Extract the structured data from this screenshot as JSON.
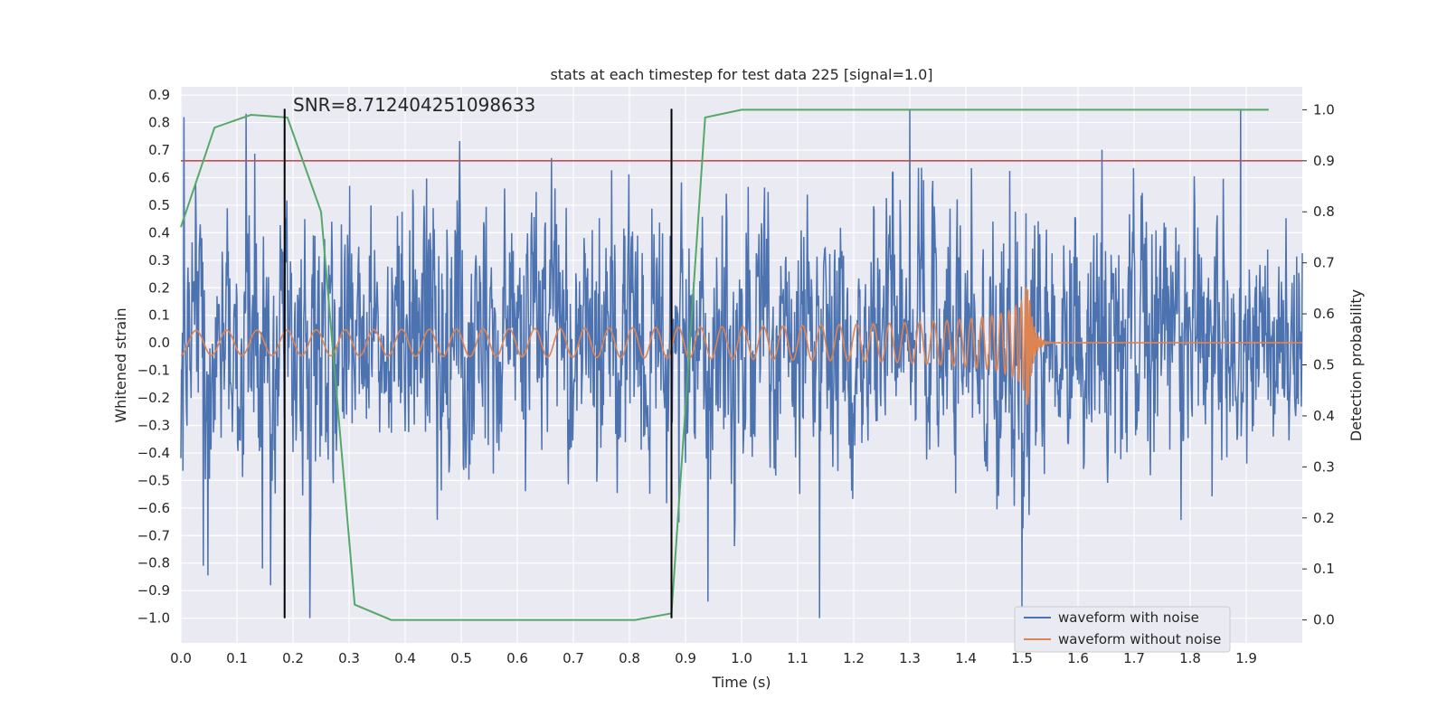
{
  "chart_data": {
    "type": "line",
    "title": "stats at each timestep for test data 225 [signal=1.0]",
    "xlabel": "Time (s)",
    "ylabel": "Whitened strain",
    "y2label": "Detection probability",
    "xlim": [
      0.0,
      2.0
    ],
    "ylim": [
      -1.09,
      0.93
    ],
    "y2lim": [
      -0.045,
      1.045
    ],
    "xticks": [
      "0.0",
      "0.1",
      "0.2",
      "0.3",
      "0.4",
      "0.5",
      "0.6",
      "0.7",
      "0.8",
      "0.9",
      "1.0",
      "1.1",
      "1.2",
      "1.3",
      "1.4",
      "1.5",
      "1.6",
      "1.7",
      "1.8",
      "1.9"
    ],
    "yticks": [
      "0.9",
      "0.8",
      "0.7",
      "0.6",
      "0.5",
      "0.4",
      "0.3",
      "0.2",
      "0.1",
      "0.0",
      "−0.1",
      "−0.2",
      "−0.3",
      "−0.4",
      "−0.5",
      "−0.6",
      "−0.7",
      "−0.8",
      "−0.9",
      "−1.0"
    ],
    "y2ticks": [
      "1.0",
      "0.9",
      "0.8",
      "0.7",
      "0.6",
      "0.5",
      "0.4",
      "0.3",
      "0.2",
      "0.1",
      "0.0"
    ],
    "grid": true,
    "legend_position": "lower-right",
    "annotation": "SNR=8.712404251098633",
    "series": [
      {
        "name": "waveform with noise",
        "color": "#4c72b0",
        "kind": "noise",
        "amplitude_range": [
          -1.0,
          0.85
        ],
        "t_range": [
          0.0,
          2.0
        ],
        "peaks": [
          [
            0.005,
            0.82
          ],
          [
            0.04,
            -0.81
          ],
          [
            0.145,
            -0.82
          ],
          [
            1.3,
            0.85
          ],
          [
            1.5,
            -0.96
          ],
          [
            1.89,
            0.85
          ],
          [
            0.94,
            -0.94
          ]
        ]
      },
      {
        "name": "waveform without noise",
        "color": "#dd8452",
        "kind": "chirp",
        "t_range": [
          0.0,
          2.0
        ],
        "merger_time": 1.51,
        "amplitude_start": 0.045,
        "amplitude_peak": 0.25
      },
      {
        "name": "detection probability",
        "color": "#55a868",
        "axis": "right",
        "x": [
          0.0,
          0.06,
          0.125,
          0.19,
          0.25,
          0.31,
          0.375,
          0.5,
          0.625,
          0.81,
          0.875,
          0.935,
          1.0,
          1.94
        ],
        "values": [
          0.77,
          0.965,
          0.99,
          0.985,
          0.8,
          0.03,
          0.0,
          0.0,
          0.0,
          0.0,
          0.013,
          0.985,
          1.0,
          1.0
        ]
      },
      {
        "name": "threshold",
        "color": "#c44e52",
        "axis": "right",
        "kind": "hline",
        "value": 0.9
      },
      {
        "name": "window markers",
        "color": "#000000",
        "kind": "vlines",
        "x": [
          0.185,
          0.875
        ],
        "y_from": -1.0,
        "y_to": 0.85
      }
    ]
  }
}
